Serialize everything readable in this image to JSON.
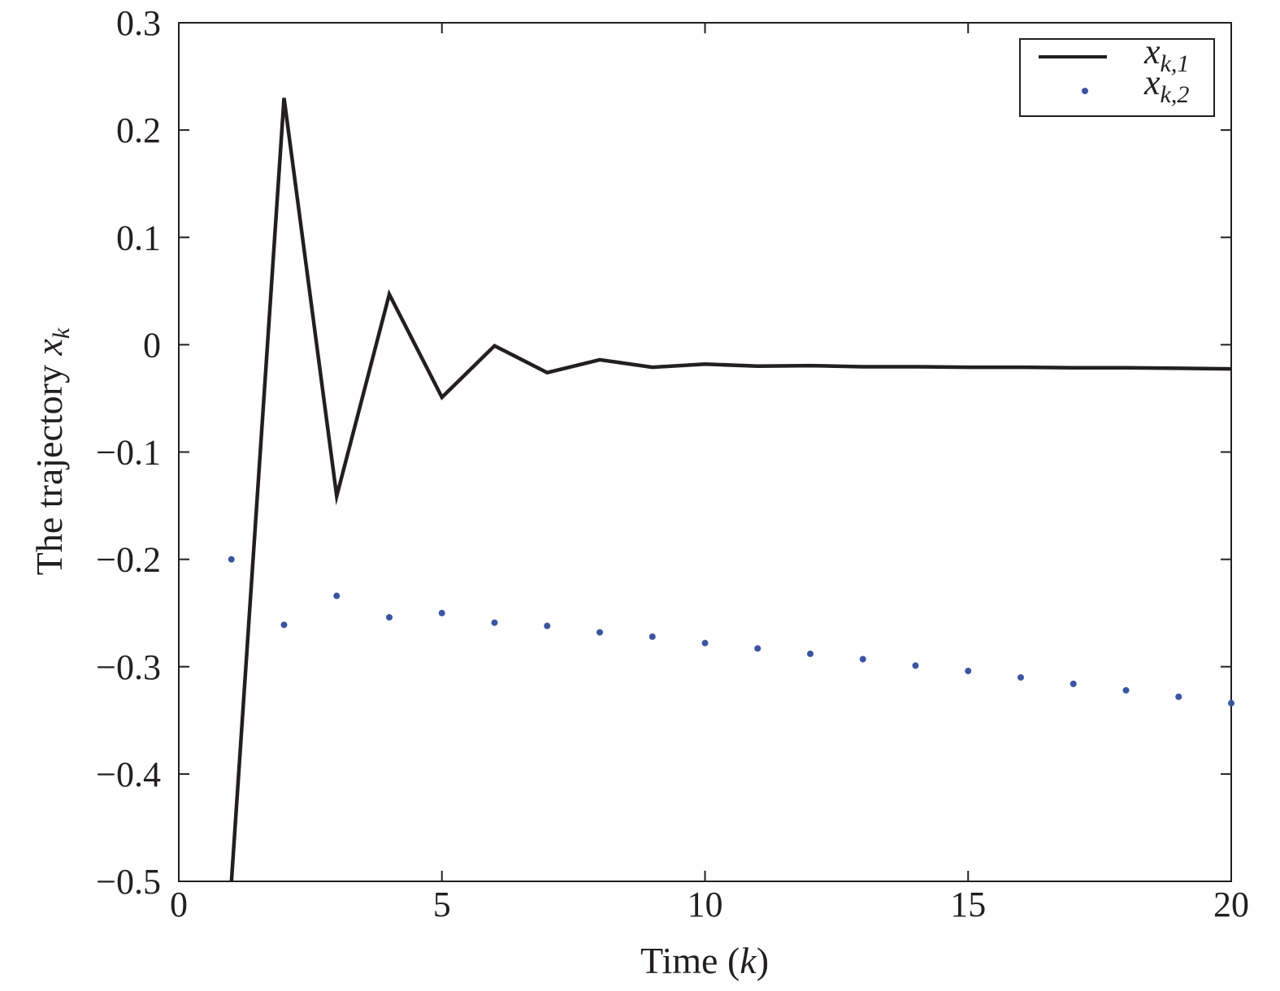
{
  "chart_data": {
    "type": "line",
    "xlabel": {
      "prefix": "Time (",
      "var": "k",
      "suffix": ")"
    },
    "ylabel": {
      "prefix": "The trajectory ",
      "var": "x",
      "sub": "k"
    },
    "xlim": [
      0,
      20
    ],
    "ylim": [
      -0.5,
      0.3
    ],
    "xticks": [
      0,
      5,
      10,
      15,
      20
    ],
    "xtick_labels": [
      "0",
      "5",
      "10",
      "15",
      "20"
    ],
    "yticks": [
      0.3,
      0.2,
      0.1,
      0,
      -0.1,
      -0.2,
      -0.3,
      -0.4,
      -0.5
    ],
    "ytick_labels": [
      "0.3",
      "0.2",
      "0.1",
      "0",
      "−0.1",
      "−0.2",
      "−0.3",
      "−0.4",
      "−0.5"
    ],
    "grid": false,
    "legend_position": "top-right",
    "series": [
      {
        "name": "x_{k,1}",
        "legend_var": "x",
        "legend_sub": "k,1",
        "style": "line",
        "color": "#231f20",
        "x": [
          1,
          2,
          3,
          4,
          5,
          6,
          7,
          8,
          9,
          10,
          11,
          12,
          13,
          14,
          15,
          16,
          17,
          18,
          19,
          20
        ],
        "y": [
          -0.5,
          0.23,
          -0.141,
          0.047,
          -0.049,
          -0.001,
          -0.026,
          -0.014,
          -0.021,
          -0.018,
          -0.02,
          -0.0195,
          -0.0205,
          -0.0205,
          -0.021,
          -0.021,
          -0.0215,
          -0.0215,
          -0.022,
          -0.0225
        ]
      },
      {
        "name": "x_{k,2}",
        "legend_var": "x",
        "legend_sub": "k,2",
        "style": "dot",
        "color": "#3a55a4",
        "x": [
          1,
          2,
          3,
          4,
          5,
          6,
          7,
          8,
          9,
          10,
          11,
          12,
          13,
          14,
          15,
          16,
          17,
          18,
          19,
          20
        ],
        "y": [
          -0.2,
          -0.261,
          -0.234,
          -0.254,
          -0.25,
          -0.259,
          -0.262,
          -0.268,
          -0.272,
          -0.278,
          -0.283,
          -0.288,
          -0.293,
          -0.299,
          -0.304,
          -0.31,
          -0.316,
          -0.322,
          -0.328,
          -0.334
        ]
      }
    ]
  }
}
